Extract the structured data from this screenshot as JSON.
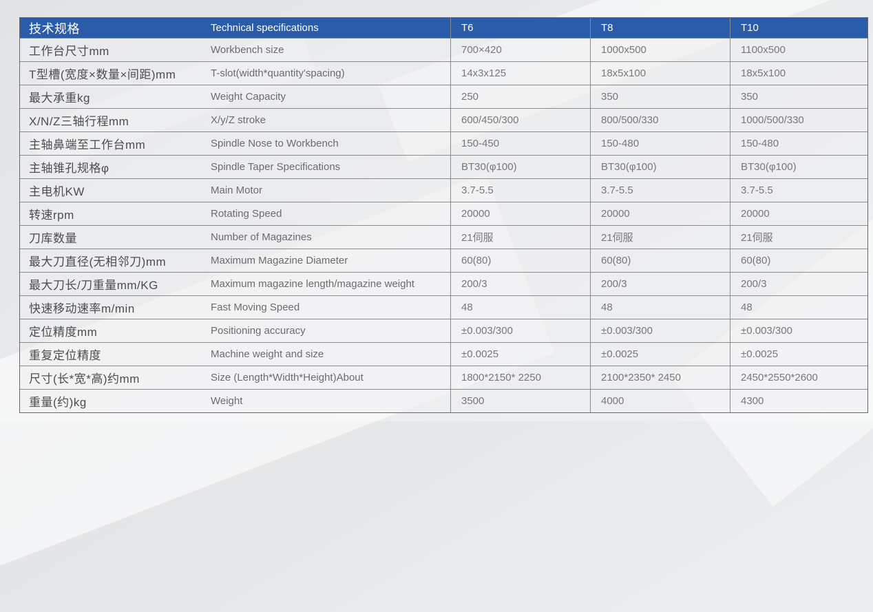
{
  "table": {
    "header": {
      "zh": "技术规格",
      "en": "Technical specifications",
      "models": [
        "T6",
        "T8",
        "T10"
      ]
    },
    "rows": [
      {
        "zh": "工作台尺寸mm",
        "en": "Workbench size",
        "values": [
          "700×420",
          "1000x500",
          "1100x500"
        ]
      },
      {
        "zh": "T型槽(宽度×数量×间距)mm",
        "en": "T-slot(width*quantity'spacing)",
        "values": [
          "14x3x125",
          "18x5x100",
          "18x5x100"
        ]
      },
      {
        "zh": "最大承重kg",
        "en": "Weight Capacity",
        "values": [
          "250",
          "350",
          "350"
        ]
      },
      {
        "zh": "X/N/Z三轴行程mm",
        "en": "X/y/Z stroke",
        "values": [
          "600/450/300",
          "800/500/330",
          "1000/500/330"
        ]
      },
      {
        "zh": "主轴鼻端至工作台mm",
        "en": "Spindle Nose to Workbench",
        "values": [
          "150-450",
          "150-480",
          "150-480"
        ]
      },
      {
        "zh": "主轴锥孔规格φ",
        "en": "Spindle Taper Specifications",
        "values": [
          "BT30(φ100)",
          "BT30(φ100)",
          "BT30(φ100)"
        ]
      },
      {
        "zh": "主电机KW",
        "en": "Main Motor",
        "values": [
          "3.7-5.5",
          "3.7-5.5",
          "3.7-5.5"
        ]
      },
      {
        "zh": "转速rpm",
        "en": "Rotating Speed",
        "values": [
          "20000",
          "20000",
          "20000"
        ]
      },
      {
        "zh": "刀库数量",
        "en": "Number of Magazines",
        "values": [
          "21伺服",
          "21伺服",
          "21伺服"
        ]
      },
      {
        "zh": "最大刀直径(无相邻刀)mm",
        "en": "Maximum Magazine Diameter",
        "values": [
          "60(80)",
          "60(80)",
          "60(80)"
        ]
      },
      {
        "zh": "最大刀长/刀重量mm/KG",
        "en": "Maximum magazine length/magazine weight",
        "values": [
          "200/3",
          "200/3",
          "200/3"
        ]
      },
      {
        "zh": "快速移动速率m/min",
        "en": "Fast Moving Speed",
        "values": [
          "48",
          "48",
          "48"
        ]
      },
      {
        "zh": "定位精度mm",
        "en": "Positioning accuracy",
        "values": [
          "±0.003/300",
          "±0.003/300",
          "±0.003/300"
        ]
      },
      {
        "zh": "重复定位精度",
        "en": "Machine weight and size",
        "values": [
          "±0.0025",
          "±0.0025",
          "±0.0025"
        ]
      },
      {
        "zh": "尺寸(长*宽*高)约mm",
        "en": "Size (Length*Width*Height)About",
        "values": [
          "1800*2150* 2250",
          "2100*2350* 2450",
          "2450*2550*2600"
        ]
      },
      {
        "zh": "重量(约)kg",
        "en": "Weight",
        "values": [
          "3500",
          "4000",
          "4300"
        ]
      }
    ],
    "colors": {
      "header_bg": "#2b5caa",
      "header_text": "#ffffff",
      "border": "#8b8c8f",
      "outer_border": "#66676a",
      "label_zh_text": "#4c4d4f",
      "label_en_text": "#6b6c6f",
      "value_text": "#77787b",
      "page_bg": "#e8eaec"
    }
  }
}
